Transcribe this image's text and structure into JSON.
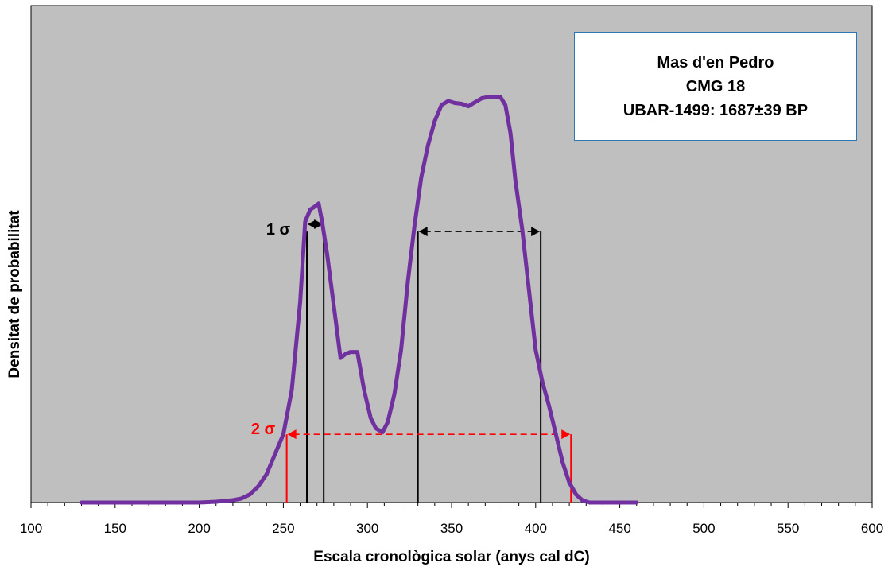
{
  "chart_data": {
    "type": "line",
    "title_lines": [
      "Mas d'en Pedro",
      "CMG 18",
      "UBAR-1499: 1687±39 BP"
    ],
    "xlabel": "Escala cronològica solar (anys cal dC)",
    "ylabel": "Densitat de probabilitat",
    "xlim": [
      100,
      600
    ],
    "ylim": [
      0,
      100
    ],
    "x_ticks": [
      "100",
      "150",
      "200",
      "250",
      "300",
      "350",
      "400",
      "450",
      "500",
      "550",
      "600"
    ],
    "y_tick_labels_shown": false,
    "grid": false,
    "series": [
      {
        "color": "#7030a0",
        "x": [
          130,
          150,
          180,
          200,
          210,
          220,
          225,
          230,
          235,
          240,
          245,
          250,
          255,
          260,
          263,
          266,
          268,
          271,
          273,
          276,
          280,
          284,
          287,
          290,
          294,
          298,
          302,
          305,
          309,
          312,
          316,
          320,
          324,
          328,
          332,
          336,
          340,
          344,
          348,
          352,
          356,
          360,
          364,
          368,
          372,
          376,
          379,
          382,
          385,
          388,
          392,
          396,
          400,
          404,
          408,
          412,
          416,
          420,
          424,
          428,
          432,
          436,
          440,
          445,
          450,
          455,
          460
        ],
        "y": [
          0,
          0,
          0,
          0,
          0.2,
          0.6,
          1,
          2,
          4,
          7,
          12,
          17,
          28,
          50,
          70,
          73,
          73.5,
          74.5,
          70,
          62,
          49,
          36,
          37,
          37.5,
          37.5,
          28,
          21,
          18.5,
          17.5,
          20,
          27,
          38,
          55,
          69,
          81,
          89,
          95,
          99,
          100,
          99.5,
          99.3,
          98.7,
          99.7,
          100.7,
          101,
          101,
          101,
          99,
          92,
          80,
          68,
          53,
          38,
          30,
          24,
          17,
          10,
          5,
          2,
          0.5,
          0,
          0,
          0,
          0,
          0,
          0,
          0
        ]
      }
    ],
    "annotations": {
      "sigma1": {
        "label": "1 σ",
        "color": "#000000",
        "style": "solid/dashed",
        "ranges": [
          [
            264,
            274
          ],
          [
            330,
            403
          ]
        ],
        "level": 67.5
      },
      "sigma2": {
        "label": "2 σ",
        "color": "#ff0000",
        "style": "dashed",
        "ranges": [
          [
            252,
            421
          ]
        ],
        "level": 17
      }
    }
  }
}
